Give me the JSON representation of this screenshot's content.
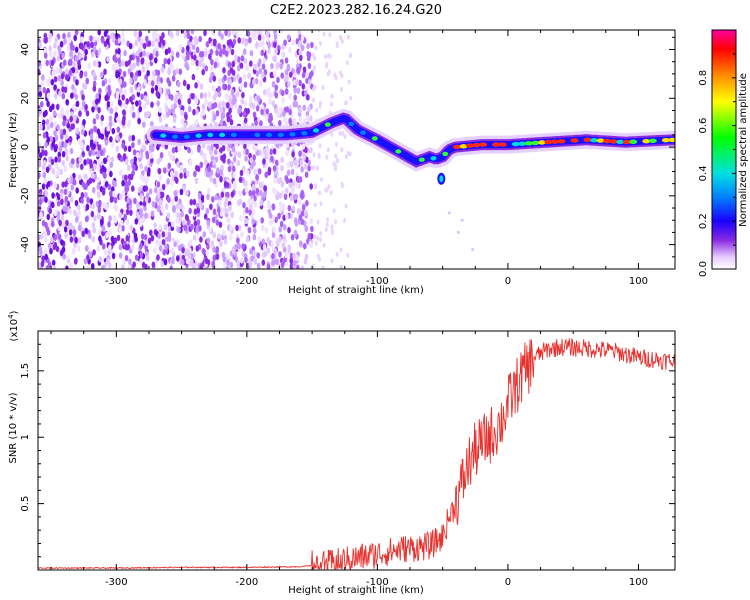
{
  "figure": {
    "title": "C2E2.2023.282.16.24.G20"
  },
  "chart_data": [
    {
      "type": "heatmap",
      "xlabel": "Height of straight line (km)",
      "ylabel": "Frequency (Hz)",
      "xlim": [
        -360,
        128
      ],
      "ylim": [
        -50,
        48
      ],
      "x_ticks": [
        -300,
        -200,
        -100,
        0,
        100
      ],
      "y_ticks": [
        -40,
        -20,
        0,
        20,
        40
      ],
      "noise_extent_x": [
        -360,
        -150
      ],
      "signal_ridge": {
        "x": [
          -270,
          -250,
          -230,
          -200,
          -170,
          -150,
          -135,
          -125,
          -115,
          -100,
          -90,
          -80,
          -70,
          -60,
          -55,
          -50,
          -45,
          -40,
          -20,
          0,
          30,
          60,
          90,
          128
        ],
        "y": [
          5,
          4,
          5,
          5,
          5,
          6,
          10,
          12,
          7,
          3,
          0,
          -3,
          -6,
          -4,
          -5,
          -4,
          -1,
          0,
          1,
          1,
          2,
          3,
          2,
          3
        ]
      },
      "colorbar": {
        "label": "Normalized spectral amplitude",
        "range": [
          0.0,
          1.0
        ],
        "ticks": [
          0.0,
          0.2,
          0.4,
          0.6,
          0.8
        ]
      }
    },
    {
      "type": "line",
      "xlabel": "Height of straight line (km)",
      "ylabel": "SNR (10 * v/v)",
      "scale_label": "(x10",
      "scale_exponent": "4",
      "scale_suffix": ")",
      "xlim": [
        -360,
        128
      ],
      "ylim": [
        0,
        1.8
      ],
      "x_ticks": [
        -300,
        -200,
        -100,
        0,
        100
      ],
      "y_ticks": [
        0.5,
        1.0,
        1.5
      ],
      "series": [
        {
          "color": "#e8302c",
          "x": [
            -360,
            -300,
            -250,
            -200,
            -160,
            -140,
            -120,
            -100,
            -80,
            -60,
            -50,
            -45,
            -40,
            -35,
            -30,
            -25,
            -20,
            -15,
            -10,
            -5,
            0,
            10,
            20,
            30,
            40,
            60,
            80,
            100,
            128
          ],
          "y": [
            0.015,
            0.015,
            0.02,
            0.02,
            0.025,
            0.04,
            0.08,
            0.12,
            0.16,
            0.18,
            0.25,
            0.4,
            0.5,
            0.65,
            0.8,
            0.9,
            0.95,
            1.0,
            1.05,
            1.12,
            1.25,
            1.45,
            1.6,
            1.66,
            1.68,
            1.67,
            1.65,
            1.6,
            1.57
          ]
        }
      ]
    }
  ]
}
